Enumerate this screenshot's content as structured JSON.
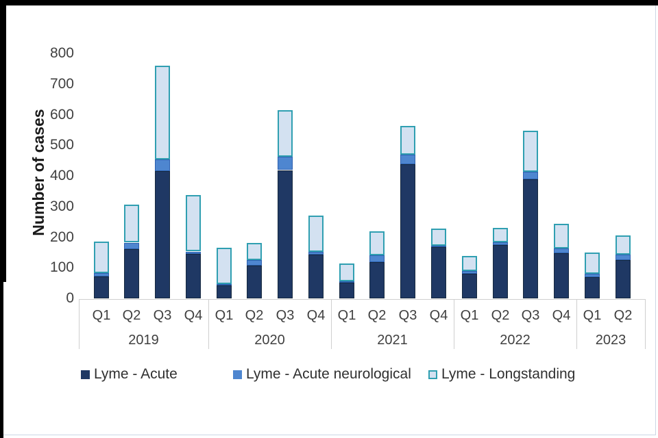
{
  "figure": {
    "background": "#ffffff",
    "frame_color": "#000000"
  },
  "chart_data": {
    "type": "bar",
    "stacked": true,
    "title": "",
    "xlabel": "",
    "ylabel": "Number of cases",
    "ylim": [
      0,
      800
    ],
    "y_ticks": [
      0,
      100,
      200,
      300,
      400,
      500,
      600,
      700,
      800
    ],
    "grid": false,
    "legend_position": "bottom",
    "groups": [
      {
        "year": "2019",
        "quarters": [
          "Q1",
          "Q2",
          "Q3",
          "Q4"
        ]
      },
      {
        "year": "2020",
        "quarters": [
          "Q1",
          "Q2",
          "Q3",
          "Q4"
        ]
      },
      {
        "year": "2021",
        "quarters": [
          "Q1",
          "Q2",
          "Q3",
          "Q4"
        ]
      },
      {
        "year": "2022",
        "quarters": [
          "Q1",
          "Q2",
          "Q3",
          "Q4"
        ]
      },
      {
        "year": "2023",
        "quarters": [
          "Q1",
          "Q2"
        ]
      }
    ],
    "series": [
      {
        "name": "Lyme - Acute",
        "color": "#1f3864",
        "border_color": "#16293f",
        "values": [
          72,
          160,
          416,
          145,
          43,
          107,
          419,
          144,
          51,
          119,
          438,
          168,
          80,
          174,
          388,
          148,
          70,
          125
        ]
      },
      {
        "name": "Lyme - Acute neurological",
        "color": "#4e86d0",
        "border_color": "#2b5fae",
        "values": [
          11,
          22,
          37,
          8,
          5,
          19,
          43,
          8,
          6,
          21,
          31,
          5,
          9,
          10,
          26,
          15,
          11,
          18
        ]
      },
      {
        "name": "Lyme - Longstanding",
        "color": "#d3e1f1",
        "border_color": "#2f9fb1",
        "values": [
          102,
          125,
          307,
          185,
          117,
          54,
          153,
          118,
          58,
          78,
          95,
          55,
          49,
          46,
          133,
          81,
          69,
          62
        ]
      }
    ]
  },
  "colors": {
    "axis_line": "#cfcfcf",
    "tick_text": "#404040",
    "hairline": "#ccd6e4"
  }
}
